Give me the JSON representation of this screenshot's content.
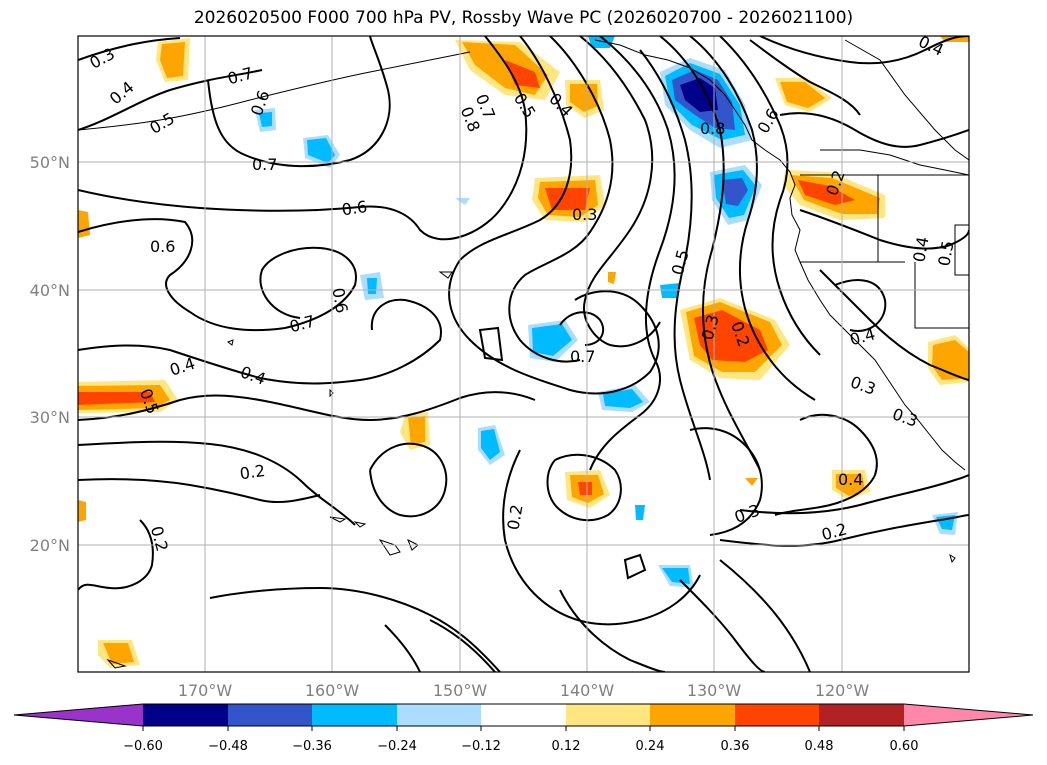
{
  "title": "2026020500 F000 700 hPa PV, Rossby Wave PC (2026020700 - 2026021100)",
  "map": {
    "lat_labels": [
      "50°N",
      "40°N",
      "30°N",
      "20°N"
    ],
    "lon_labels": [
      "170°W",
      "160°W",
      "150°W",
      "140°W",
      "130°W",
      "120°W"
    ],
    "contour_labels": [
      "0.3",
      "0.4",
      "0.5",
      "0.7",
      "0.6",
      "0.7",
      "0.6",
      "0.6",
      "0.7",
      "0.6",
      "0.4",
      "0.4",
      "0.5",
      "0.2",
      "0.2",
      "0.8",
      "0.7",
      "0.5",
      "0.4",
      "0.3",
      "0.7",
      "0.5",
      "0.8",
      "0.6",
      "0.3",
      "0.2",
      "0.2",
      "0.4",
      "0.5",
      "0.4",
      "0.3",
      "0.3",
      "0.4",
      "0.2",
      "0.3",
      "0.4"
    ]
  },
  "colorbar": {
    "tick_labels": [
      "−0.60",
      "−0.48",
      "−0.36",
      "−0.24",
      "−0.12",
      "0.12",
      "0.24",
      "0.36",
      "0.48",
      "0.60"
    ],
    "colors": [
      "#9933cc",
      "#000088",
      "#3355cc",
      "#00bbff",
      "#aaddff",
      "#ffffff",
      "#ffe680",
      "#ffa500",
      "#ff4400",
      "#b22222",
      "#ff88aa"
    ]
  }
}
